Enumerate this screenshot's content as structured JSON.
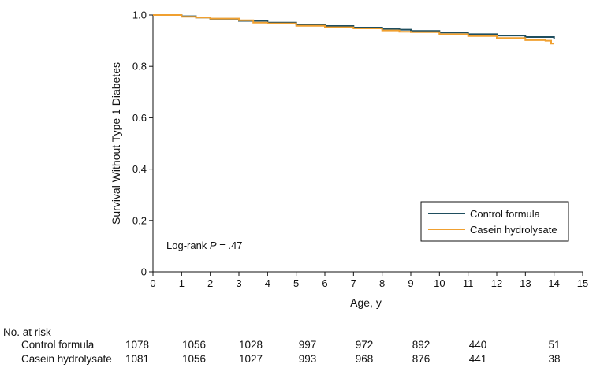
{
  "chart_data": {
    "type": "line",
    "xlabel": "Age, y",
    "ylabel": "Survival Without Type 1 Diabetes",
    "xlim": [
      0,
      15
    ],
    "ylim": [
      0,
      1.0
    ],
    "x_ticks": [
      "0",
      "1",
      "2",
      "3",
      "4",
      "5",
      "6",
      "7",
      "8",
      "9",
      "10",
      "11",
      "12",
      "13",
      "14",
      "15"
    ],
    "y_ticks": [
      "0",
      "0.2",
      "0.4",
      "0.6",
      "0.8",
      "1.0"
    ],
    "grid": false,
    "legend_position": "lower-right",
    "annotation": {
      "prefix": "Log-rank ",
      "italic": "P",
      "suffix": " = .47"
    },
    "series": [
      {
        "name": "Control formula",
        "color": "#1f4e5f",
        "points": [
          [
            0,
            1.0
          ],
          [
            1,
            0.995
          ],
          [
            1.5,
            0.99
          ],
          [
            2,
            0.985
          ],
          [
            3,
            0.977
          ],
          [
            4,
            0.97
          ],
          [
            5,
            0.963
          ],
          [
            6,
            0.957
          ],
          [
            7,
            0.951
          ],
          [
            8,
            0.946
          ],
          [
            8.6,
            0.943
          ],
          [
            9,
            0.938
          ],
          [
            10,
            0.932
          ],
          [
            11,
            0.925
          ],
          [
            12,
            0.92
          ],
          [
            13,
            0.914
          ],
          [
            14,
            0.905
          ]
        ]
      },
      {
        "name": "Casein hydrolysate",
        "color": "#f0a030",
        "points": [
          [
            0,
            1.0
          ],
          [
            1,
            0.993
          ],
          [
            1.5,
            0.99
          ],
          [
            2,
            0.986
          ],
          [
            3,
            0.979
          ],
          [
            3.5,
            0.97
          ],
          [
            4,
            0.967
          ],
          [
            5,
            0.958
          ],
          [
            6,
            0.952
          ],
          [
            7,
            0.948
          ],
          [
            8,
            0.94
          ],
          [
            8.6,
            0.935
          ],
          [
            9,
            0.933
          ],
          [
            10,
            0.925
          ],
          [
            11,
            0.918
          ],
          [
            12,
            0.91
          ],
          [
            13,
            0.902
          ],
          [
            13.7,
            0.9
          ],
          [
            13.9,
            0.889
          ],
          [
            14,
            0.889
          ]
        ]
      }
    ]
  },
  "risk_table": {
    "title": "No. at risk",
    "rows": [
      {
        "label": "Control formula",
        "values": [
          "1078",
          "1056",
          "1028",
          "997",
          "972",
          "892",
          "440",
          "51"
        ]
      },
      {
        "label": "Casein hydrolysate",
        "values": [
          "1081",
          "1056",
          "1027",
          "993",
          "968",
          "876",
          "441",
          "38"
        ]
      }
    ]
  }
}
